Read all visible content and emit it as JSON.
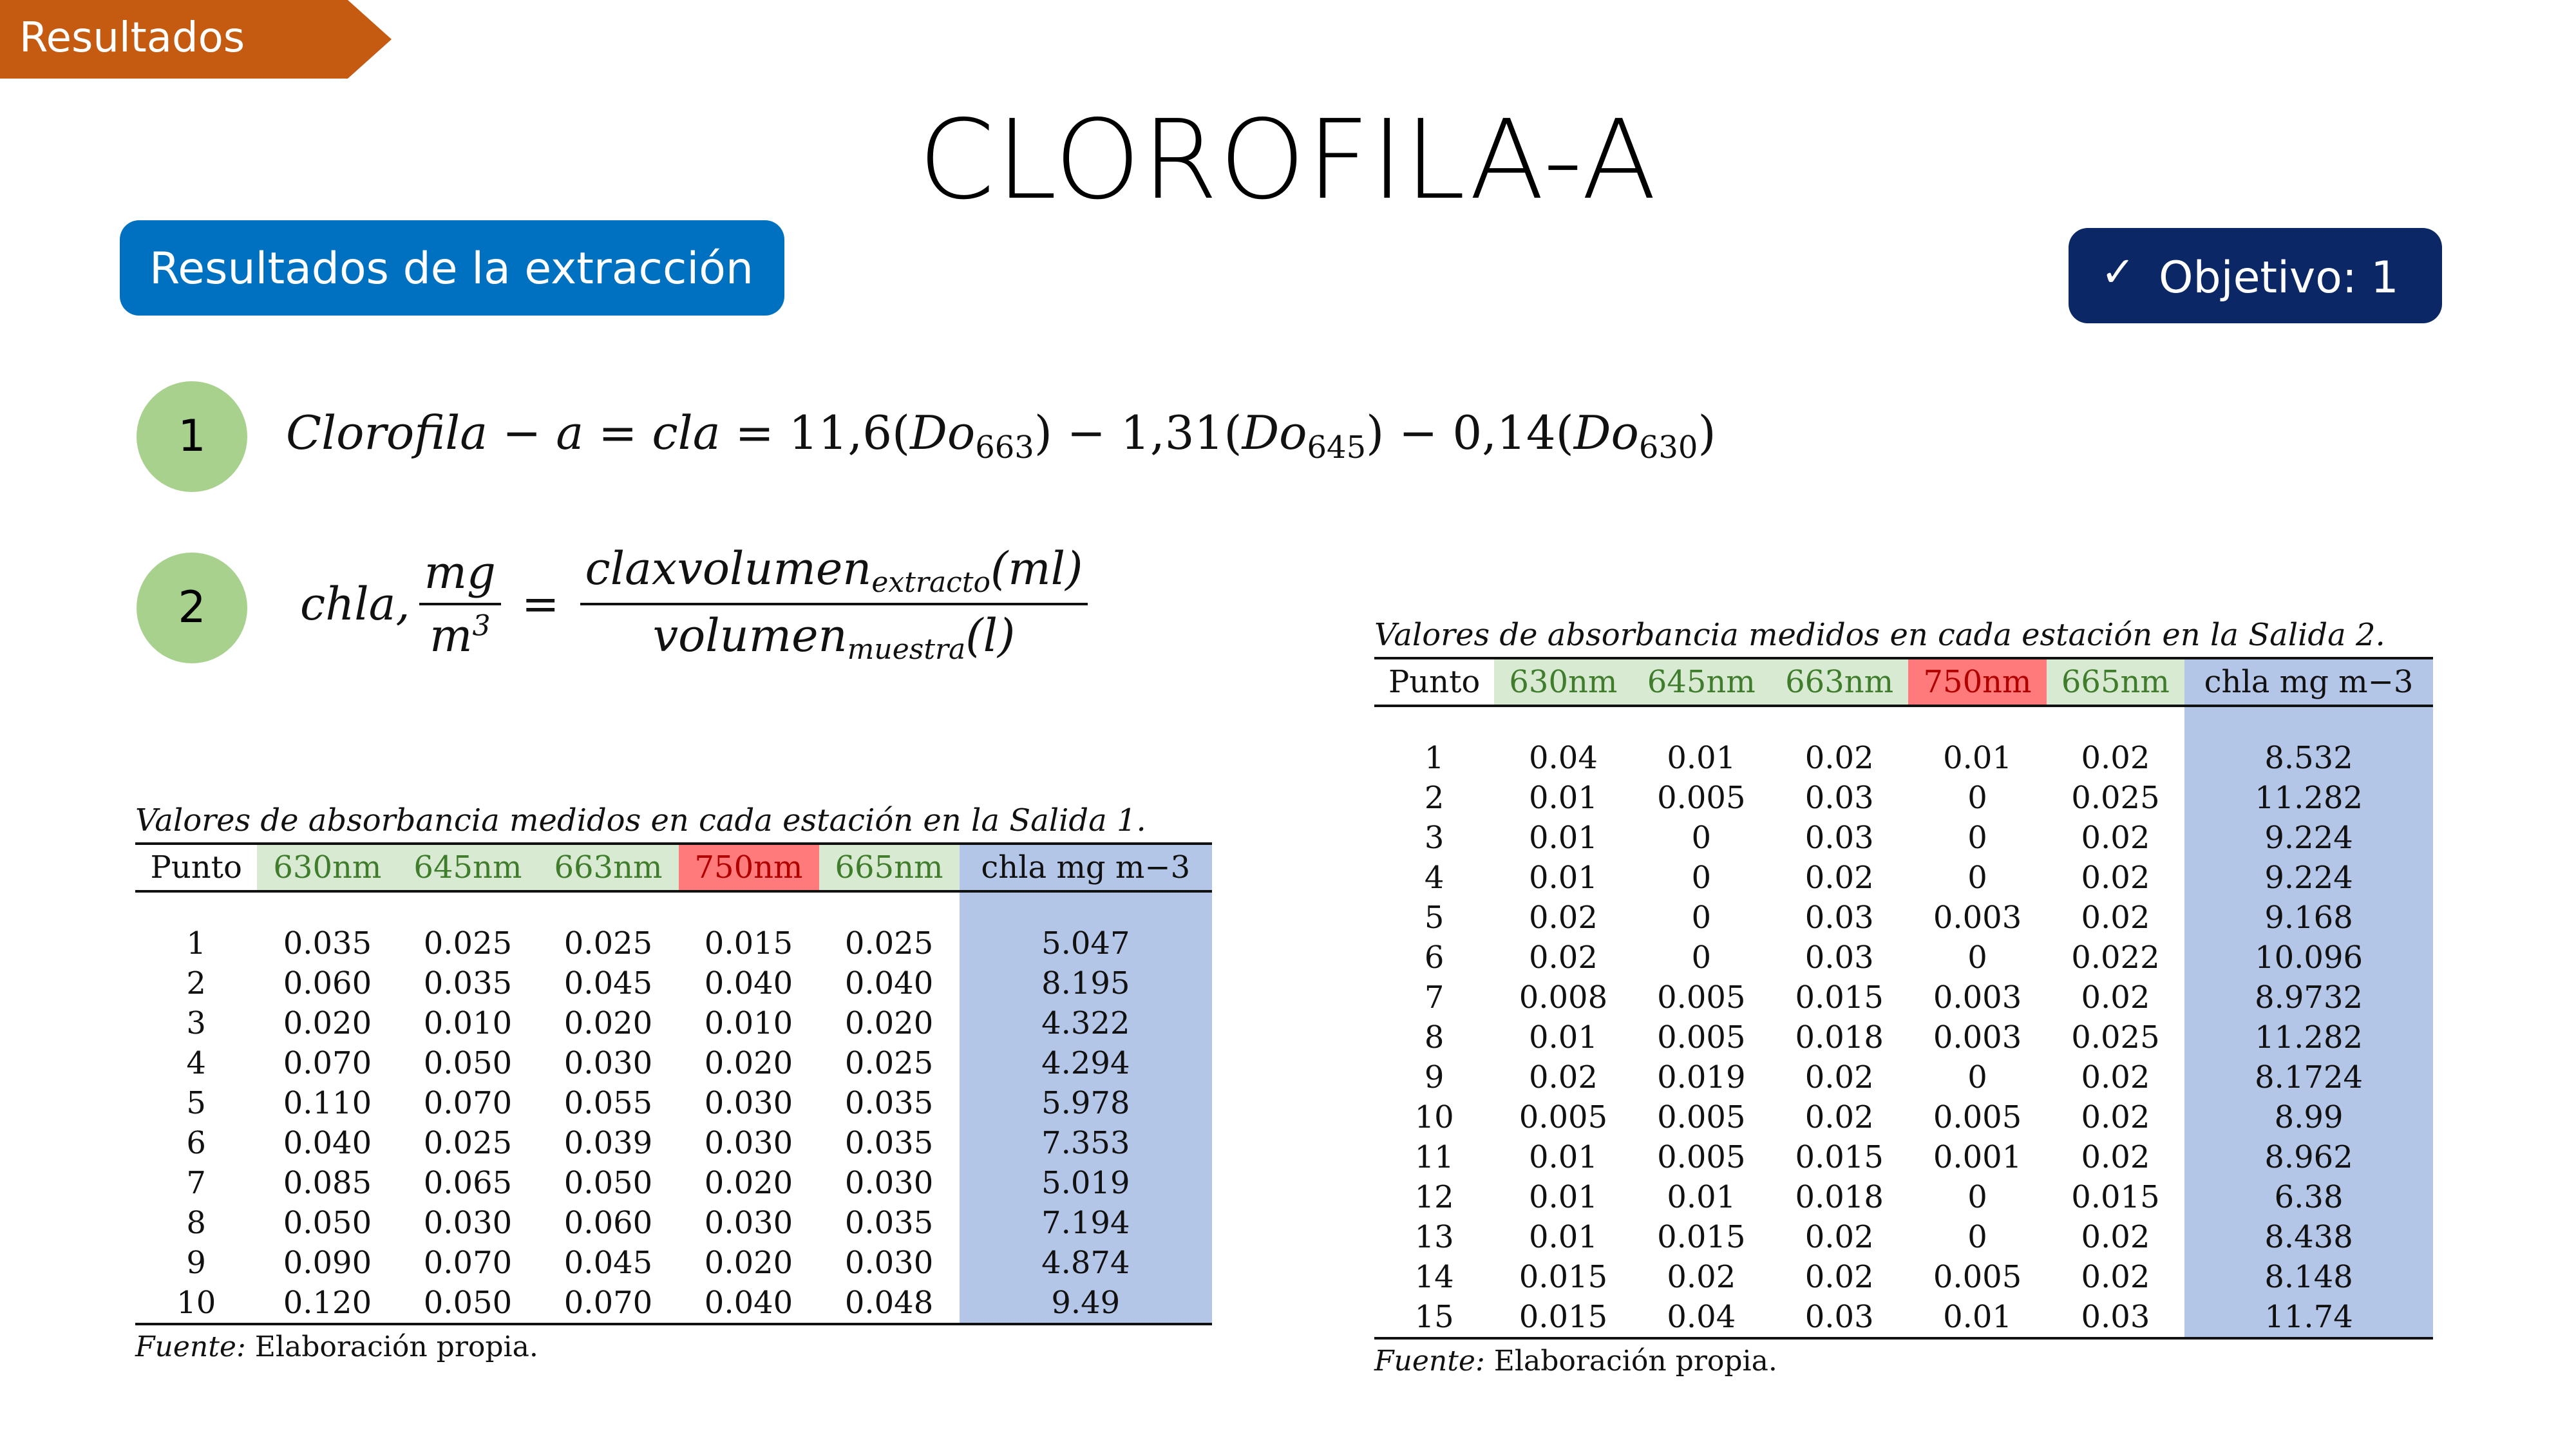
{
  "section_tag": "Resultados",
  "title": "CLOROFILA-A",
  "subtitle_pill": "Resultados de la extracción",
  "objective": {
    "check": "✓",
    "label": "Objetivo: 1"
  },
  "formulas": [
    {
      "number": "1",
      "text": "Clorofila − a = cla = 11,6(Do663) − 1,31(Do645) − 0,14(Do630)"
    },
    {
      "number": "2",
      "lhs": "chla, mg/m3",
      "numerator": "claxvolumen extracto (ml)",
      "denominator": "volumen muestra (l)"
    }
  ],
  "formula_parts": {
    "f1_lhs": "Clorofila − a = cla = ",
    "c1": "11,6",
    "do1": "Do",
    "s1": "663",
    "c2": "1,31",
    "do2": "Do",
    "s2": "645",
    "c3": "0,14",
    "do3": "Do",
    "s3": "630",
    "f2_lhs": "chla,",
    "f2_mg": "mg",
    "f2_m": "m",
    "f2_exp": "3",
    "num_main": "claxvolumen",
    "num_sub": "extracto",
    "num_tail": "(ml)",
    "den_main": "volumen",
    "den_sub": "muestra",
    "den_tail": "(l)"
  },
  "table1": {
    "caption": "Valores de absorbancia medidos en cada estación en la Salida 1.",
    "headers": [
      "Punto",
      "630nm",
      "645nm",
      "663nm",
      "750nm",
      "665nm",
      "chla mg m−3"
    ],
    "rows": [
      [
        "1",
        "0.035",
        "0.025",
        "0.025",
        "0.015",
        "0.025",
        "5.047"
      ],
      [
        "2",
        "0.060",
        "0.035",
        "0.045",
        "0.040",
        "0.040",
        "8.195"
      ],
      [
        "3",
        "0.020",
        "0.010",
        "0.020",
        "0.010",
        "0.020",
        "4.322"
      ],
      [
        "4",
        "0.070",
        "0.050",
        "0.030",
        "0.020",
        "0.025",
        "4.294"
      ],
      [
        "5",
        "0.110",
        "0.070",
        "0.055",
        "0.030",
        "0.035",
        "5.978"
      ],
      [
        "6",
        "0.040",
        "0.025",
        "0.039",
        "0.030",
        "0.035",
        "7.353"
      ],
      [
        "7",
        "0.085",
        "0.065",
        "0.050",
        "0.020",
        "0.030",
        "5.019"
      ],
      [
        "8",
        "0.050",
        "0.030",
        "0.060",
        "0.030",
        "0.035",
        "7.194"
      ],
      [
        "9",
        "0.090",
        "0.070",
        "0.045",
        "0.020",
        "0.030",
        "4.874"
      ],
      [
        "10",
        "0.120",
        "0.050",
        "0.070",
        "0.040",
        "0.048",
        "9.49"
      ]
    ],
    "source_label": "Fuente:",
    "source_text": "Elaboración propia."
  },
  "table2": {
    "caption": "Valores de absorbancia medidos en cada estación en la Salida 2.",
    "headers": [
      "Punto",
      "630nm",
      "645nm",
      "663nm",
      "750nm",
      "665nm",
      "chla mg m−3"
    ],
    "rows": [
      [
        "1",
        "0.04",
        "0.01",
        "0.02",
        "0.01",
        "0.02",
        "8.532"
      ],
      [
        "2",
        "0.01",
        "0.005",
        "0.03",
        "0",
        "0.025",
        "11.282"
      ],
      [
        "3",
        "0.01",
        "0",
        "0.03",
        "0",
        "0.02",
        "9.224"
      ],
      [
        "4",
        "0.01",
        "0",
        "0.02",
        "0",
        "0.02",
        "9.224"
      ],
      [
        "5",
        "0.02",
        "0",
        "0.03",
        "0.003",
        "0.02",
        "9.168"
      ],
      [
        "6",
        "0.02",
        "0",
        "0.03",
        "0",
        "0.022",
        "10.096"
      ],
      [
        "7",
        "0.008",
        "0.005",
        "0.015",
        "0.003",
        "0.02",
        "8.9732"
      ],
      [
        "8",
        "0.01",
        "0.005",
        "0.018",
        "0.003",
        "0.025",
        "11.282"
      ],
      [
        "9",
        "0.02",
        "0.019",
        "0.02",
        "0",
        "0.02",
        "8.1724"
      ],
      [
        "10",
        "0.005",
        "0.005",
        "0.02",
        "0.005",
        "0.02",
        "8.99"
      ],
      [
        "11",
        "0.01",
        "0.005",
        "0.015",
        "0.001",
        "0.02",
        "8.962"
      ],
      [
        "12",
        "0.01",
        "0.01",
        "0.018",
        "0",
        "0.015",
        "6.38"
      ],
      [
        "13",
        "0.01",
        "0.015",
        "0.02",
        "0",
        "0.02",
        "8.438"
      ],
      [
        "14",
        "0.015",
        "0.02",
        "0.02",
        "0.005",
        "0.02",
        "8.148"
      ],
      [
        "15",
        "0.015",
        "0.04",
        "0.03",
        "0.01",
        "0.03",
        "11.74"
      ]
    ],
    "source_label": "Fuente:",
    "source_text": "Elaboración propia."
  },
  "colors": {
    "section_tag": "#c55a11",
    "subtitle_pill": "#0070c0",
    "objective_pill": "#0b2766",
    "badge": "#a9d18e",
    "header_green": "#d9ead3",
    "header_red": "#ff7b7b",
    "column_blue": "#b4c6e7"
  },
  "icons": {
    "objective": "checkmark-icon"
  }
}
